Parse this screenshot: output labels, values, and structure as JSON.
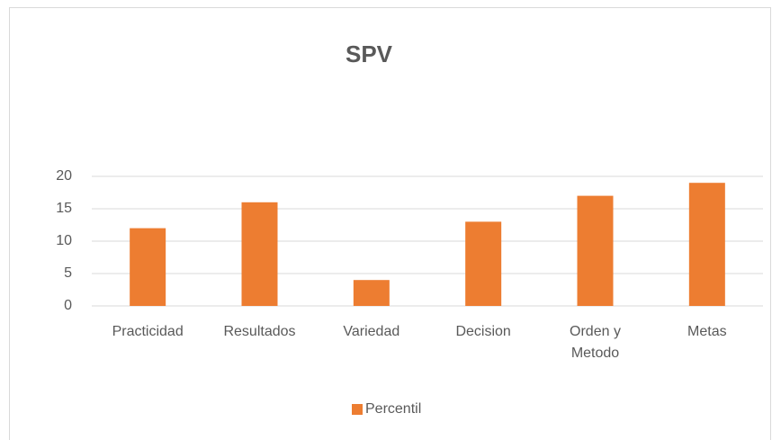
{
  "chart_data": {
    "type": "bar",
    "title": "SPV",
    "categories": [
      "Practicidad",
      "Resultados",
      "Variedad",
      "Decision",
      "Orden y Metodo",
      "Metas"
    ],
    "series": [
      {
        "name": "Percentil",
        "color": "#ed7d31",
        "values": [
          12,
          16,
          4,
          13,
          17,
          19
        ]
      }
    ],
    "ylim": [
      0,
      20
    ],
    "yticks": [
      0,
      5,
      10,
      15,
      20
    ],
    "grid": true,
    "legend": "bottom"
  }
}
